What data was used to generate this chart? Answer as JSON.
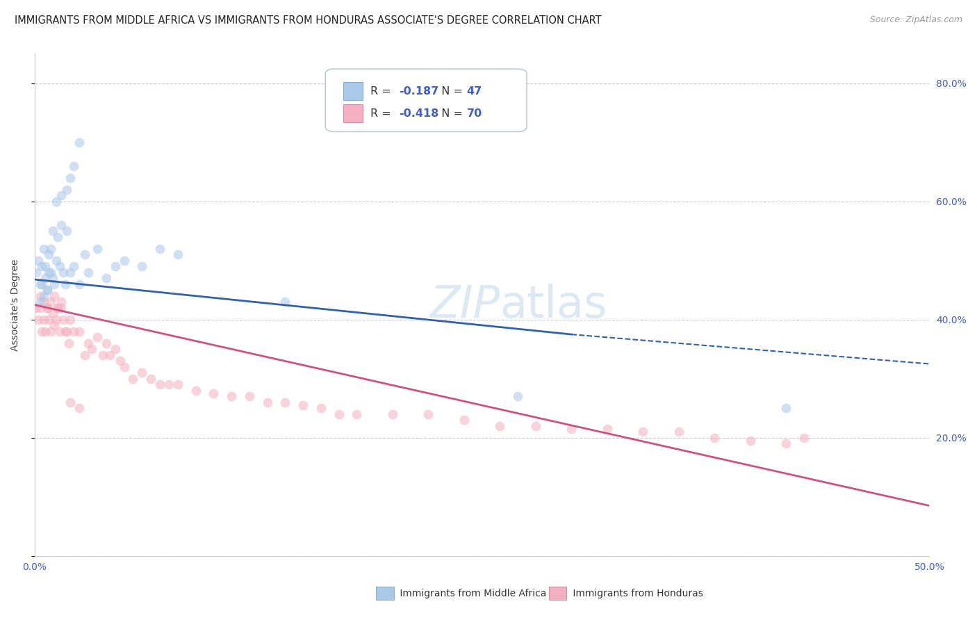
{
  "title": "IMMIGRANTS FROM MIDDLE AFRICA VS IMMIGRANTS FROM HONDURAS ASSOCIATE'S DEGREE CORRELATION CHART",
  "source": "Source: ZipAtlas.com",
  "ylabel": "Associate's Degree",
  "yaxis_ticks": [
    0.0,
    0.2,
    0.4,
    0.6,
    0.8
  ],
  "yaxis_labels": [
    "",
    "20.0%",
    "40.0%",
    "60.0%",
    "80.0%"
  ],
  "xlim": [
    0.0,
    0.5
  ],
  "ylim": [
    0.0,
    0.85
  ],
  "legend_blue_r_val": "-0.187",
  "legend_blue_n_val": "47",
  "legend_pink_r_val": "-0.418",
  "legend_pink_n_val": "70",
  "blue_color": "#aac8e8",
  "pink_color": "#f4afc0",
  "blue_line_color": "#3060b0",
  "pink_line_color": "#d05080",
  "text_blue_color": "#4060c0",
  "watermark_color": "#dce8f4",
  "grid_color": "#cccccc",
  "bg_color": "#ffffff",
  "title_fontsize": 10.5,
  "tick_fontsize": 10,
  "scatter_alpha": 0.55,
  "scatter_size": 100,
  "blue_line_solid_end": 0.3,
  "blue_line_x_end": 0.5,
  "blue_line_y_start": 0.468,
  "blue_line_y_at_solid_end": 0.375,
  "blue_line_y_end": 0.325,
  "pink_line_y_start": 0.425,
  "pink_line_y_end": 0.085,
  "blue_scatter_x": [
    0.001,
    0.002,
    0.003,
    0.004,
    0.005,
    0.006,
    0.007,
    0.008,
    0.009,
    0.01,
    0.011,
    0.012,
    0.013,
    0.014,
    0.015,
    0.016,
    0.017,
    0.018,
    0.02,
    0.022,
    0.025,
    0.028,
    0.03,
    0.035,
    0.04,
    0.045,
    0.05,
    0.06,
    0.07,
    0.08,
    0.003,
    0.004,
    0.005,
    0.006,
    0.007,
    0.008,
    0.009,
    0.01,
    0.012,
    0.015,
    0.018,
    0.02,
    0.022,
    0.025,
    0.14,
    0.27,
    0.42
  ],
  "blue_scatter_y": [
    0.48,
    0.5,
    0.46,
    0.49,
    0.52,
    0.47,
    0.45,
    0.51,
    0.48,
    0.47,
    0.46,
    0.5,
    0.54,
    0.49,
    0.56,
    0.48,
    0.46,
    0.55,
    0.48,
    0.49,
    0.46,
    0.51,
    0.48,
    0.52,
    0.47,
    0.49,
    0.5,
    0.49,
    0.52,
    0.51,
    0.43,
    0.46,
    0.44,
    0.49,
    0.45,
    0.48,
    0.52,
    0.55,
    0.6,
    0.61,
    0.62,
    0.64,
    0.66,
    0.7,
    0.43,
    0.27,
    0.25
  ],
  "pink_scatter_x": [
    0.001,
    0.002,
    0.003,
    0.004,
    0.005,
    0.006,
    0.007,
    0.008,
    0.009,
    0.01,
    0.011,
    0.012,
    0.013,
    0.014,
    0.015,
    0.016,
    0.017,
    0.018,
    0.019,
    0.02,
    0.022,
    0.025,
    0.028,
    0.03,
    0.032,
    0.035,
    0.038,
    0.04,
    0.042,
    0.045,
    0.048,
    0.05,
    0.055,
    0.06,
    0.065,
    0.07,
    0.075,
    0.08,
    0.09,
    0.1,
    0.11,
    0.12,
    0.13,
    0.14,
    0.15,
    0.16,
    0.17,
    0.18,
    0.2,
    0.22,
    0.24,
    0.26,
    0.28,
    0.3,
    0.32,
    0.34,
    0.36,
    0.38,
    0.4,
    0.42,
    0.003,
    0.005,
    0.007,
    0.009,
    0.011,
    0.013,
    0.015,
    0.02,
    0.025,
    0.43
  ],
  "pink_scatter_y": [
    0.42,
    0.4,
    0.42,
    0.38,
    0.4,
    0.38,
    0.42,
    0.4,
    0.38,
    0.41,
    0.39,
    0.4,
    0.42,
    0.38,
    0.42,
    0.4,
    0.38,
    0.38,
    0.36,
    0.4,
    0.38,
    0.38,
    0.34,
    0.36,
    0.35,
    0.37,
    0.34,
    0.36,
    0.34,
    0.35,
    0.33,
    0.32,
    0.3,
    0.31,
    0.3,
    0.29,
    0.29,
    0.29,
    0.28,
    0.275,
    0.27,
    0.27,
    0.26,
    0.26,
    0.255,
    0.25,
    0.24,
    0.24,
    0.24,
    0.24,
    0.23,
    0.22,
    0.22,
    0.215,
    0.215,
    0.21,
    0.21,
    0.2,
    0.195,
    0.19,
    0.44,
    0.43,
    0.42,
    0.43,
    0.44,
    0.42,
    0.43,
    0.26,
    0.25,
    0.2
  ]
}
